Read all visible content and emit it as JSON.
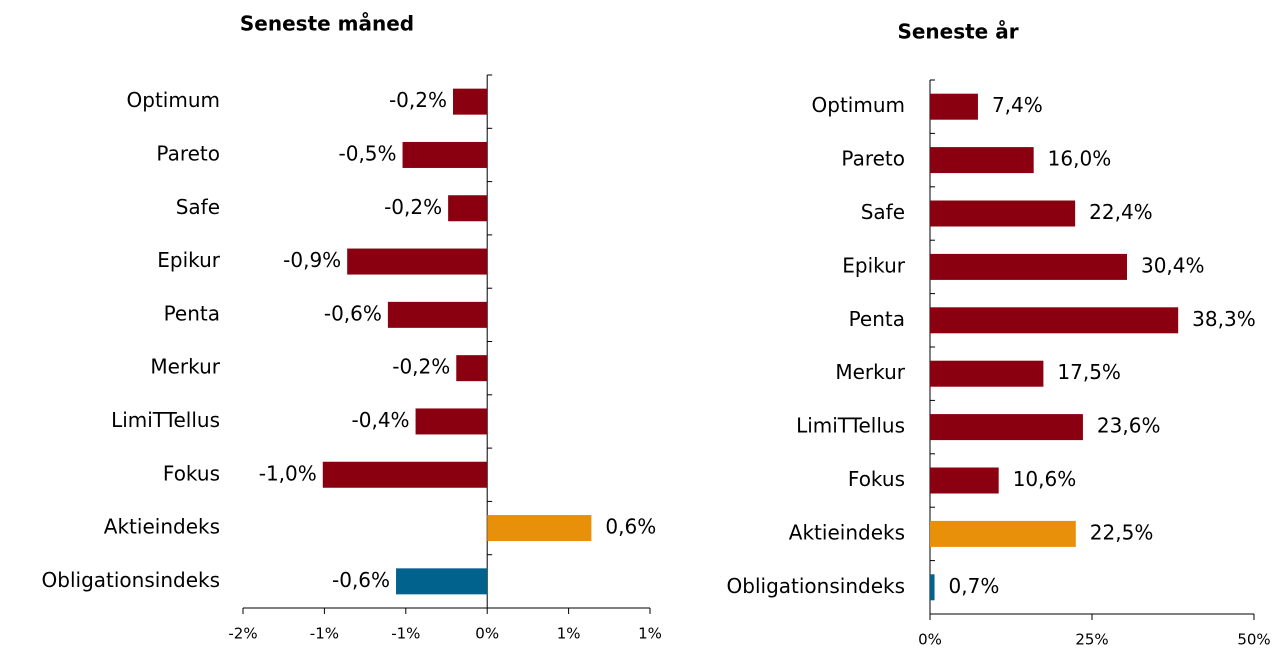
{
  "chart_data": [
    {
      "type": "bar",
      "orientation": "horizontal",
      "title": "Seneste måned",
      "categories": [
        "Optimum",
        "Pareto",
        "Safe",
        "Epikur",
        "Penta",
        "Merkur",
        "LimiTTellus",
        "Fokus",
        "Aktieindeks",
        "Obligationsindeks"
      ],
      "values": [
        -0.21,
        -0.52,
        -0.24,
        -0.86,
        -0.61,
        -0.19,
        -0.44,
        -1.01,
        0.64,
        -0.56
      ],
      "value_labels": [
        "-0,2%",
        "-0,5%",
        "-0,2%",
        "-0,9%",
        "-0,6%",
        "-0,2%",
        "-0,4%",
        "-1,0%",
        "0,6%",
        "-0,6%"
      ],
      "colors": [
        "#8b0011",
        "#8b0011",
        "#8b0011",
        "#8b0011",
        "#8b0011",
        "#8b0011",
        "#8b0011",
        "#8b0011",
        "#e8900a",
        "#00628d"
      ],
      "xlim": [
        -1.5,
        1
      ],
      "xticks": [
        {
          "value": -1.5,
          "label": "-2%"
        },
        {
          "value": -1,
          "label": "-1%"
        },
        {
          "value": -0.5,
          "label": "-1%"
        },
        {
          "value": 0,
          "label": "0%"
        },
        {
          "value": 0.5,
          "label": "1%"
        },
        {
          "value": 1,
          "label": "1%"
        }
      ]
    },
    {
      "type": "bar",
      "orientation": "horizontal",
      "title": "Seneste år",
      "categories": [
        "Optimum",
        "Pareto",
        "Safe",
        "Epikur",
        "Penta",
        "Merkur",
        "LimiTTellus",
        "Fokus",
        "Aktieindeks",
        "Obligationsindeks"
      ],
      "values": [
        7.4,
        16.0,
        22.4,
        30.4,
        38.3,
        17.5,
        23.6,
        10.6,
        22.5,
        0.7
      ],
      "value_labels": [
        "7,4%",
        "16,0%",
        "22,4%",
        "30,4%",
        "38,3%",
        "17,5%",
        "23,6%",
        "10,6%",
        "22,5%",
        "0,7%"
      ],
      "colors": [
        "#8b0011",
        "#8b0011",
        "#8b0011",
        "#8b0011",
        "#8b0011",
        "#8b0011",
        "#8b0011",
        "#8b0011",
        "#e8900a",
        "#00628d"
      ],
      "xlim": [
        0,
        50
      ],
      "xticks": [
        {
          "value": 0,
          "label": "0%"
        },
        {
          "value": 25,
          "label": "25%"
        },
        {
          "value": 50,
          "label": "50%"
        }
      ]
    }
  ]
}
